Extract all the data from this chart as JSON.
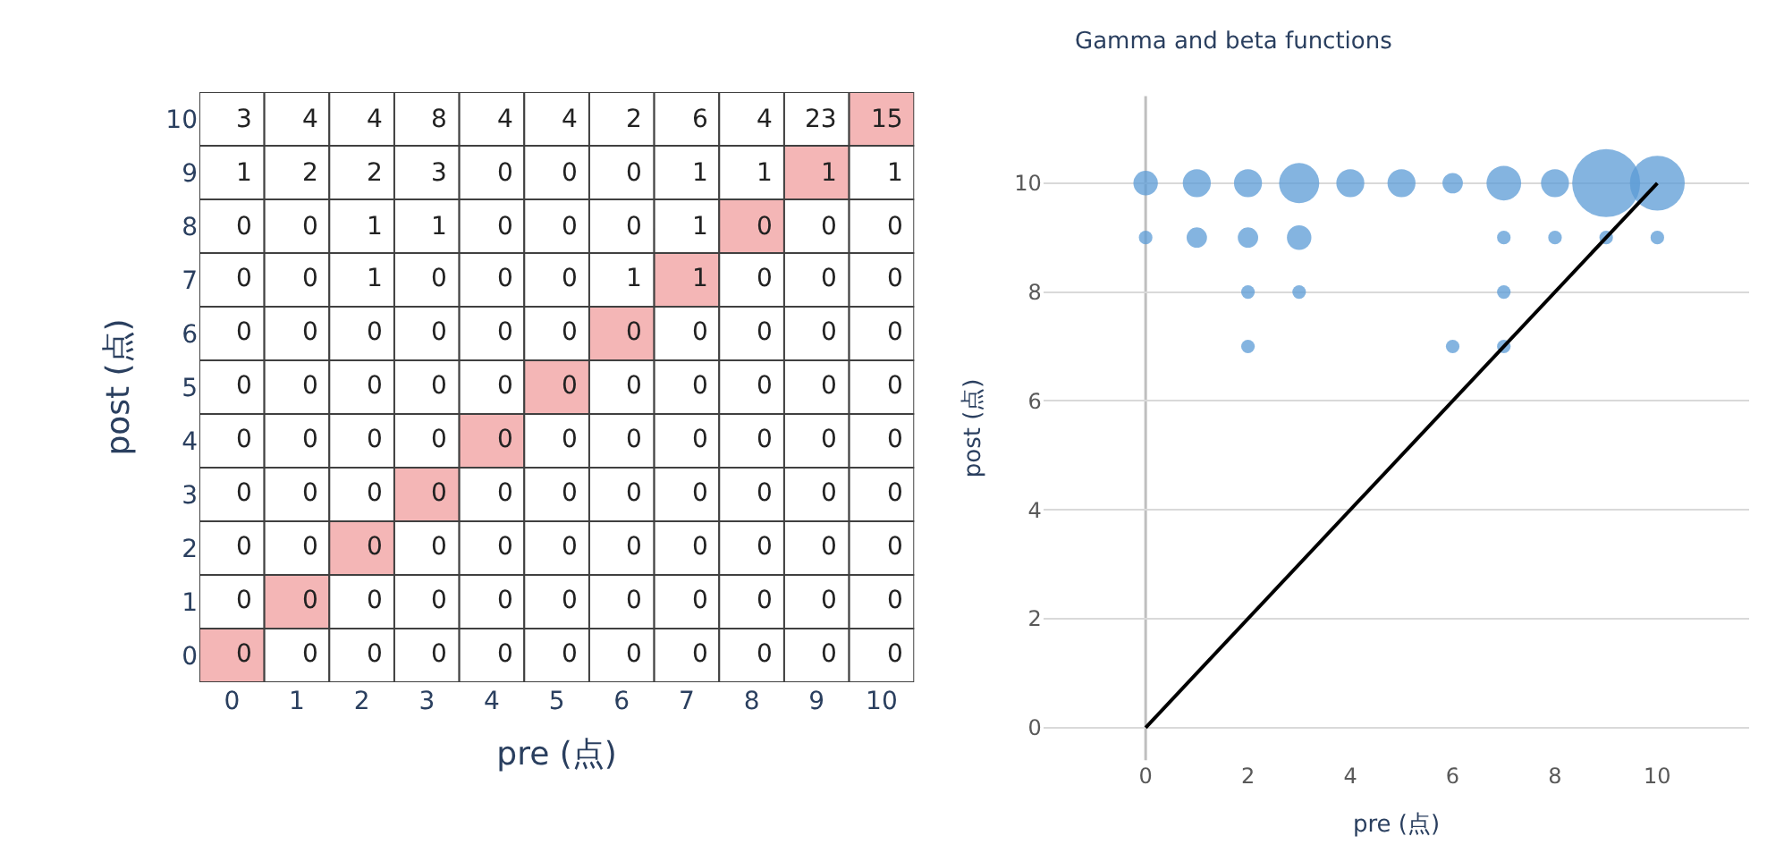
{
  "chart_data": [
    {
      "type": "heatmap",
      "data_labels": true,
      "xlabel": "pre (点)",
      "ylabel": "post (点)",
      "categories": [
        "0",
        "1",
        "2",
        "3",
        "4",
        "5",
        "6",
        "7",
        "8",
        "9",
        "10"
      ],
      "y_categories": [
        "10",
        "9",
        "8",
        "7",
        "6",
        "5",
        "4",
        "3",
        "2",
        "1",
        "0"
      ],
      "cells": [
        [
          3,
          4,
          4,
          8,
          4,
          4,
          2,
          6,
          4,
          23,
          15
        ],
        [
          1,
          2,
          2,
          3,
          0,
          0,
          0,
          1,
          1,
          1,
          1
        ],
        [
          0,
          0,
          1,
          1,
          0,
          0,
          0,
          1,
          0,
          0,
          0
        ],
        [
          0,
          0,
          1,
          0,
          0,
          0,
          1,
          1,
          0,
          0,
          0
        ],
        [
          0,
          0,
          0,
          0,
          0,
          0,
          0,
          0,
          0,
          0,
          0
        ],
        [
          0,
          0,
          0,
          0,
          0,
          0,
          0,
          0,
          0,
          0,
          0
        ],
        [
          0,
          0,
          0,
          0,
          0,
          0,
          0,
          0,
          0,
          0,
          0
        ],
        [
          0,
          0,
          0,
          0,
          0,
          0,
          0,
          0,
          0,
          0,
          0
        ],
        [
          0,
          0,
          0,
          0,
          0,
          0,
          0,
          0,
          0,
          0,
          0
        ],
        [
          0,
          0,
          0,
          0,
          0,
          0,
          0,
          0,
          0,
          0,
          0
        ],
        [
          0,
          0,
          0,
          0,
          0,
          0,
          0,
          0,
          0,
          0,
          0
        ]
      ]
    },
    {
      "type": "bubble",
      "title": "Gamma and beta functions",
      "xlabel": "pre (点)",
      "ylabel": "post (点)",
      "xlim": [
        -2,
        11.8
      ],
      "ylim": [
        -0.6,
        11.6
      ],
      "xticks": [
        0,
        2,
        4,
        6,
        8,
        10
      ],
      "yticks": [
        0,
        2,
        4,
        6,
        8,
        10
      ],
      "grid": "y",
      "ref_lines": [
        {
          "axis": "x",
          "value": 0,
          "color": "#bfbfbf"
        }
      ],
      "series": [
        {
          "type": "bubble",
          "color": "#5b9bd5",
          "x": [
            0,
            1,
            2,
            3,
            4,
            5,
            6,
            7,
            8,
            9,
            10,
            0,
            1,
            2,
            3,
            7,
            8,
            9,
            10,
            2,
            3,
            7,
            2,
            6,
            7
          ],
          "values": [
            10,
            10,
            10,
            10,
            10,
            10,
            10,
            10,
            10,
            10,
            10,
            9,
            9,
            9,
            9,
            9,
            9,
            9,
            9,
            8,
            8,
            8,
            7,
            7,
            7
          ],
          "sizes": [
            0.13,
            0.17,
            0.17,
            0.35,
            0.17,
            0.17,
            0.09,
            0.26,
            0.17,
            1,
            0.65,
            0.04,
            0.09,
            0.09,
            0.13,
            0.04,
            0.04,
            0.04,
            0.04,
            0.04,
            0.04,
            0.04,
            0.04,
            0.04,
            0.04
          ]
        },
        {
          "type": "line",
          "color": "#000000",
          "x": [
            0,
            10
          ],
          "values": [
            0,
            10
          ]
        }
      ]
    }
  ]
}
